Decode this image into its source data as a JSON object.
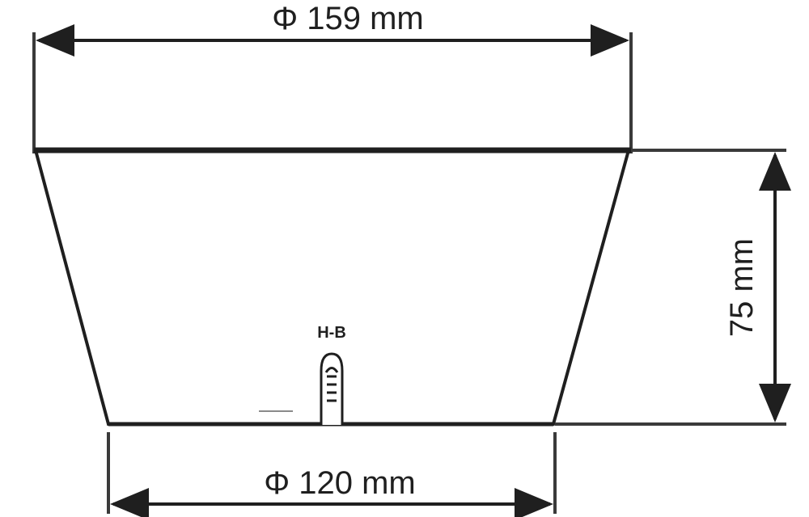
{
  "diagram": {
    "top_diameter_label": "Φ 159 mm",
    "bottom_diameter_label": "Φ 120 mm",
    "height_label": "75 mm",
    "drain_marker_label": "H-B"
  },
  "colors": {
    "line": "#1f1f1f",
    "guide": "#3a3a3a",
    "background": "#ffffff"
  }
}
